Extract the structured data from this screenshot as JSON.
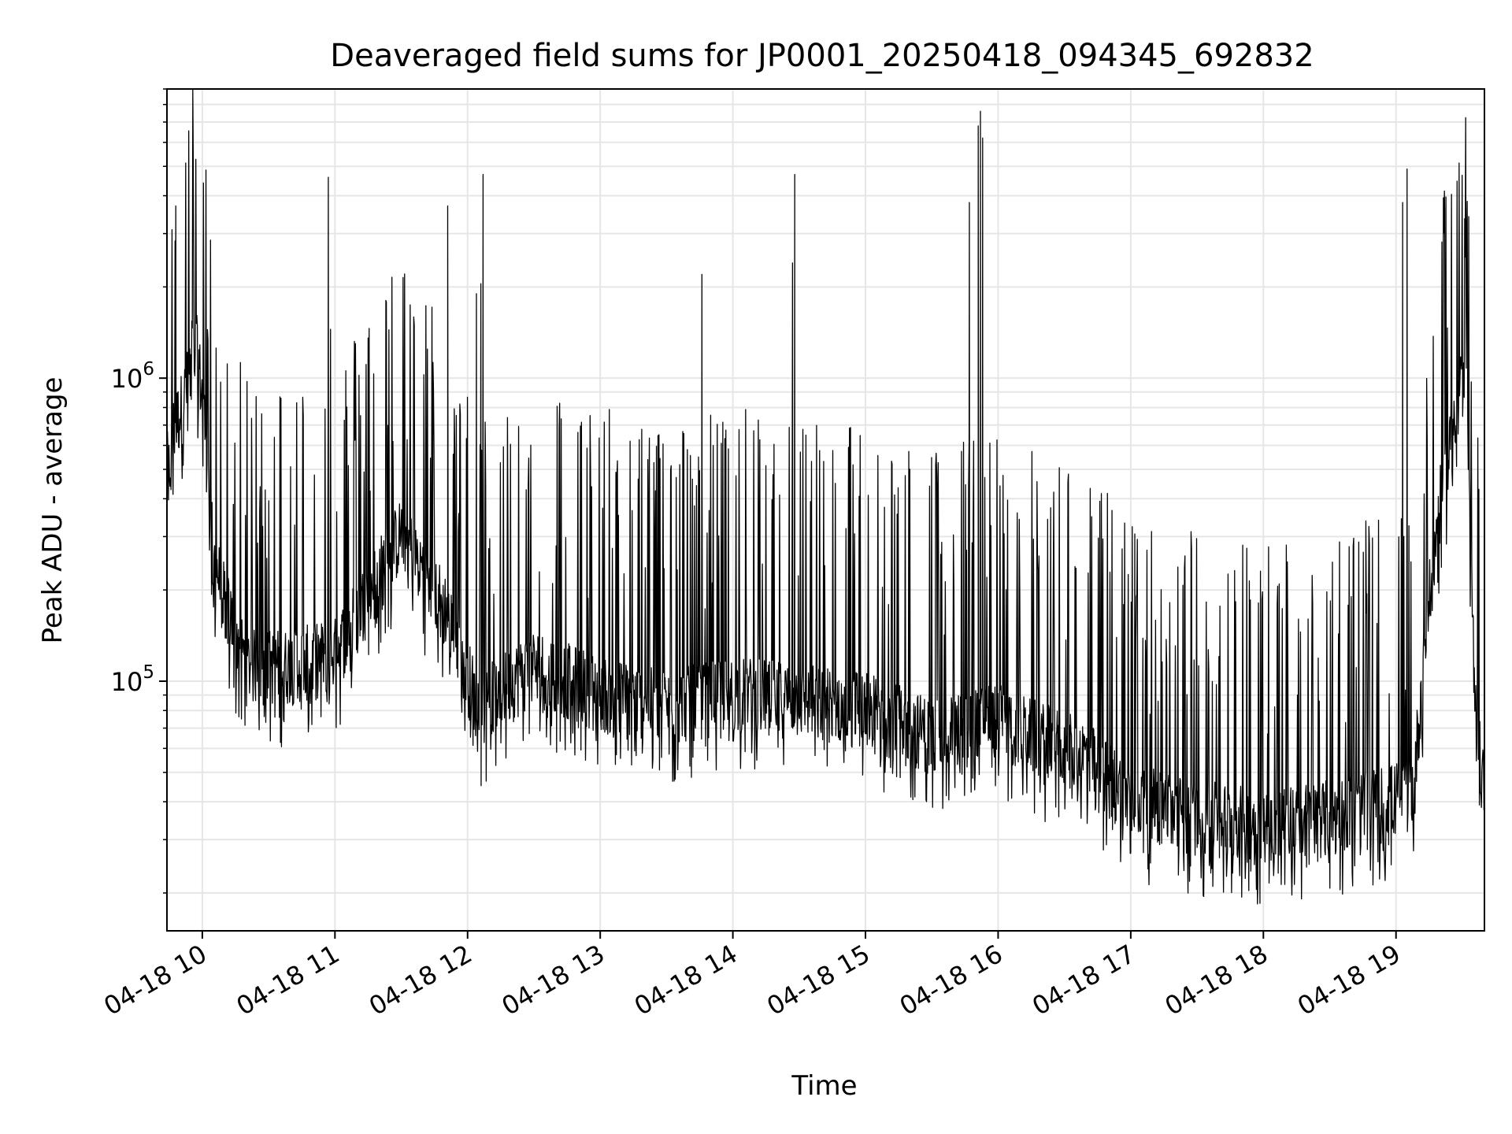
{
  "chart_data": {
    "type": "line",
    "title": "Deaveraged field sums for JP0001_20250418_094345_692832",
    "xlabel": "Time",
    "ylabel": "Peak ADU - average",
    "y_scale": "log",
    "ylim": [
      15000,
      9000000
    ],
    "xlim": [
      "2025-04-18 09:44",
      "2025-04-18 19:40"
    ],
    "x_ticks": [
      "2025-04-18 10:00",
      "2025-04-18 11:00",
      "2025-04-18 12:00",
      "2025-04-18 13:00",
      "2025-04-18 14:00",
      "2025-04-18 15:00",
      "2025-04-18 16:00",
      "2025-04-18 17:00",
      "2025-04-18 18:00",
      "2025-04-18 19:00"
    ],
    "x_tick_labels": [
      "04-18 10",
      "04-18 11",
      "04-18 12",
      "04-18 13",
      "04-18 14",
      "04-18 15",
      "04-18 16",
      "04-18 17",
      "04-18 18",
      "04-18 19"
    ],
    "y_ticks": [
      {
        "value": 100000,
        "base": "10",
        "exp": "5"
      },
      {
        "value": 1000000,
        "base": "10",
        "exp": "6"
      }
    ],
    "grid": true,
    "line_color": "#000000",
    "grid_color": "#e6e6e6",
    "series": [
      {
        "x": [
          "2025-04-18 09:44",
          "2025-04-18 09:45",
          "2025-04-18 09:47",
          "2025-04-18 09:50",
          "2025-04-18 09:53",
          "2025-04-18 09:56",
          "2025-04-18 09:58",
          "2025-04-18 10:01",
          "2025-04-18 10:05",
          "2025-04-18 10:10",
          "2025-04-18 10:20",
          "2025-04-18 10:40",
          "2025-04-18 11:00",
          "2025-04-18 11:30",
          "2025-04-18 11:50",
          "2025-04-18 12:05",
          "2025-04-18 12:30",
          "2025-04-18 13:00",
          "2025-04-18 13:30",
          "2025-04-18 14:00",
          "2025-04-18 14:30",
          "2025-04-18 15:00",
          "2025-04-18 15:30",
          "2025-04-18 15:55",
          "2025-04-18 16:15",
          "2025-04-18 16:40",
          "2025-04-18 17:00",
          "2025-04-18 17:30",
          "2025-04-18 18:00",
          "2025-04-18 18:30",
          "2025-04-18 19:00",
          "2025-04-18 19:08",
          "2025-04-18 19:15",
          "2025-04-18 19:20",
          "2025-04-18 19:25",
          "2025-04-18 19:29",
          "2025-04-18 19:32",
          "2025-04-18 19:35",
          "2025-04-18 19:38",
          "2025-04-18 19:40"
        ],
        "y": [
          500000,
          480000,
          650000,
          750000,
          900000,
          1350000,
          1150000,
          700000,
          250000,
          180000,
          110000,
          110000,
          120000,
          300000,
          170000,
          80000,
          110000,
          90000,
          80000,
          90000,
          85000,
          80000,
          65000,
          75000,
          65000,
          55000,
          40000,
          35000,
          33000,
          35000,
          40000,
          45000,
          180000,
          380000,
          650000,
          950000,
          800000,
          120000,
          58000,
          40000
        ]
      }
    ],
    "spikes": {
      "x": [
        "2025-04-18 09:48",
        "2025-04-18 10:57",
        "2025-04-18 10:58",
        "2025-04-18 11:51",
        "2025-04-18 12:04",
        "2025-04-18 12:06",
        "2025-04-18 12:07",
        "2025-04-18 13:46",
        "2025-04-18 14:27",
        "2025-04-18 14:28",
        "2025-04-18 15:47",
        "2025-04-18 15:51",
        "2025-04-18 15:52",
        "2025-04-18 15:53",
        "2025-04-18 19:03",
        "2025-04-18 19:05",
        "2025-04-18 19:22"
      ],
      "y": [
        3700000,
        4600000,
        1450000,
        3700000,
        1900000,
        2050000,
        4700000,
        2200000,
        2400000,
        4700000,
        3800000,
        6800000,
        7600000,
        6200000,
        3800000,
        4900000,
        3600000
      ]
    }
  }
}
